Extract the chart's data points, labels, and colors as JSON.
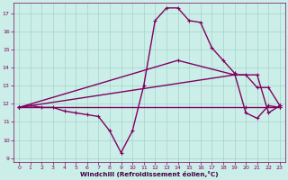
{
  "xlabel": "Windchill (Refroidissement éolien,°C)",
  "background_color": "#cceee8",
  "grid_color": "#a8d8d0",
  "line_color": "#800060",
  "xlim": [
    -0.5,
    23.5
  ],
  "ylim": [
    8.8,
    17.6
  ],
  "xticks": [
    0,
    1,
    2,
    3,
    4,
    5,
    6,
    7,
    8,
    9,
    10,
    11,
    12,
    13,
    14,
    15,
    16,
    17,
    18,
    19,
    20,
    21,
    22,
    23
  ],
  "yticks": [
    9,
    10,
    11,
    12,
    13,
    14,
    15,
    16,
    17
  ],
  "main_curve": {
    "x": [
      0,
      1,
      2,
      3,
      4,
      5,
      6,
      7,
      8,
      9,
      10,
      11,
      12,
      13,
      14,
      15,
      16,
      17,
      18,
      19,
      20,
      21,
      22,
      23
    ],
    "y": [
      11.8,
      11.9,
      11.8,
      11.8,
      11.6,
      11.5,
      11.4,
      11.3,
      10.5,
      9.3,
      10.5,
      13.0,
      16.6,
      17.3,
      17.3,
      16.6,
      16.5,
      15.1,
      14.4,
      13.7,
      11.5,
      11.2,
      11.9,
      11.8
    ]
  },
  "straight_lines": [
    {
      "x": [
        0,
        20,
        23
      ],
      "y": [
        11.8,
        11.8,
        11.8
      ]
    },
    {
      "x": [
        0,
        19,
        21,
        22,
        23
      ],
      "y": [
        11.8,
        13.6,
        13.6,
        11.5,
        11.9
      ]
    },
    {
      "x": [
        0,
        14,
        19,
        20,
        21,
        22,
        23
      ],
      "y": [
        11.8,
        14.4,
        13.6,
        13.6,
        12.9,
        12.9,
        11.9
      ]
    }
  ]
}
